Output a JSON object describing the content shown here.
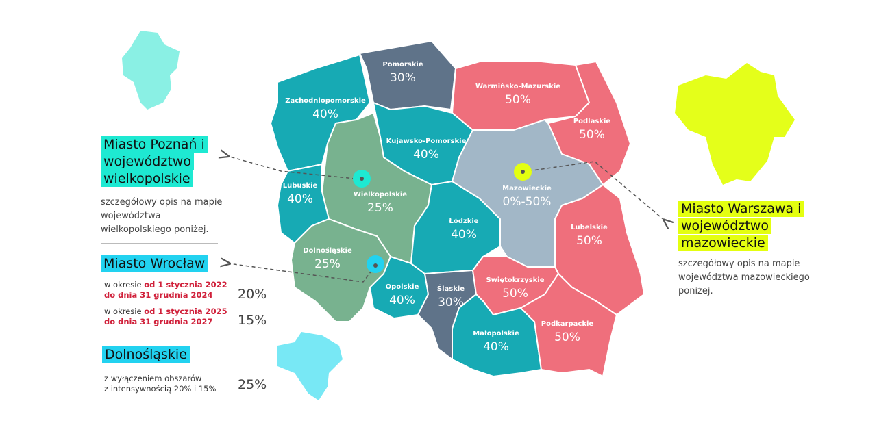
{
  "colors": {
    "teal": "#17aab4",
    "slate": "#5f7389",
    "pink": "#ef6f7c",
    "grey_blue": "#a2b7c7",
    "green": "#78b28f",
    "poznan": "#1ee9d2",
    "wroclaw": "#22d2f0",
    "warsaw": "#e4ff10",
    "text_red": "#d0203a"
  },
  "regions": [
    {
      "name": "Zachodniopomorskie",
      "rate": "40%",
      "color": "#17aab4"
    },
    {
      "name": "Pomorskie",
      "rate": "30%",
      "color": "#5f7389"
    },
    {
      "name": "Warmińsko-Mazurskie",
      "rate": "50%",
      "color": "#ef6f7c"
    },
    {
      "name": "Podlaskie",
      "rate": "50%",
      "color": "#ef6f7c"
    },
    {
      "name": "Kujawsko-Pomorskie",
      "rate": "40%",
      "color": "#17aab4"
    },
    {
      "name": "Wielkopolskie",
      "rate": "25%",
      "color": "#78b28f"
    },
    {
      "name": "Lubuskie",
      "rate": "40%",
      "color": "#17aab4"
    },
    {
      "name": "Dolnośląskie",
      "rate": "25%",
      "color": "#78b28f"
    },
    {
      "name": "Opolskie",
      "rate": "40%",
      "color": "#17aab4"
    },
    {
      "name": "Łódzkie",
      "rate": "40%",
      "color": "#17aab4"
    },
    {
      "name": "Mazowieckie",
      "rate": "0%-50%",
      "color": "#a2b7c7"
    },
    {
      "name": "Lubelskie",
      "rate": "50%",
      "color": "#ef6f7c"
    },
    {
      "name": "Śląskie",
      "rate": "30%",
      "color": "#5f7389"
    },
    {
      "name": "Świętokrzyskie",
      "rate": "50%",
      "color": "#ef6f7c"
    },
    {
      "name": "Małopolskie",
      "rate": "40%",
      "color": "#17aab4"
    },
    {
      "name": "Podkarpackie",
      "rate": "50%",
      "color": "#ef6f7c"
    }
  ],
  "poznan": {
    "title": "Miasto Poznań i województwo wielkopolskie",
    "desc": "szczegółowy opis na mapie województwa wielkopolskiego poniżej."
  },
  "wroclaw": {
    "title": "Miasto Wrocław",
    "periods": [
      {
        "prefix": "w okresie ",
        "range_1": "od 1 stycznia 2022",
        "range_2": "do dnia 31 grudnia 2024",
        "rate": "20%"
      },
      {
        "prefix": "w okresie ",
        "range_1": "od 1 stycznia 2025",
        "range_2": "do dnia 31 grudnia 2027",
        "rate": "15%"
      }
    ]
  },
  "dolnoslaskie": {
    "title": "Dolnośląskie",
    "desc_1": "z wyłączeniem obszarów",
    "desc_2": "z intensywnością 20% i 15%",
    "rate": "25%"
  },
  "warszawa": {
    "title": "Miasto Warszawa i województwo mazowieckie",
    "desc": "szczegółowy opis na mapie województwa mazowieckiego poniżej."
  }
}
